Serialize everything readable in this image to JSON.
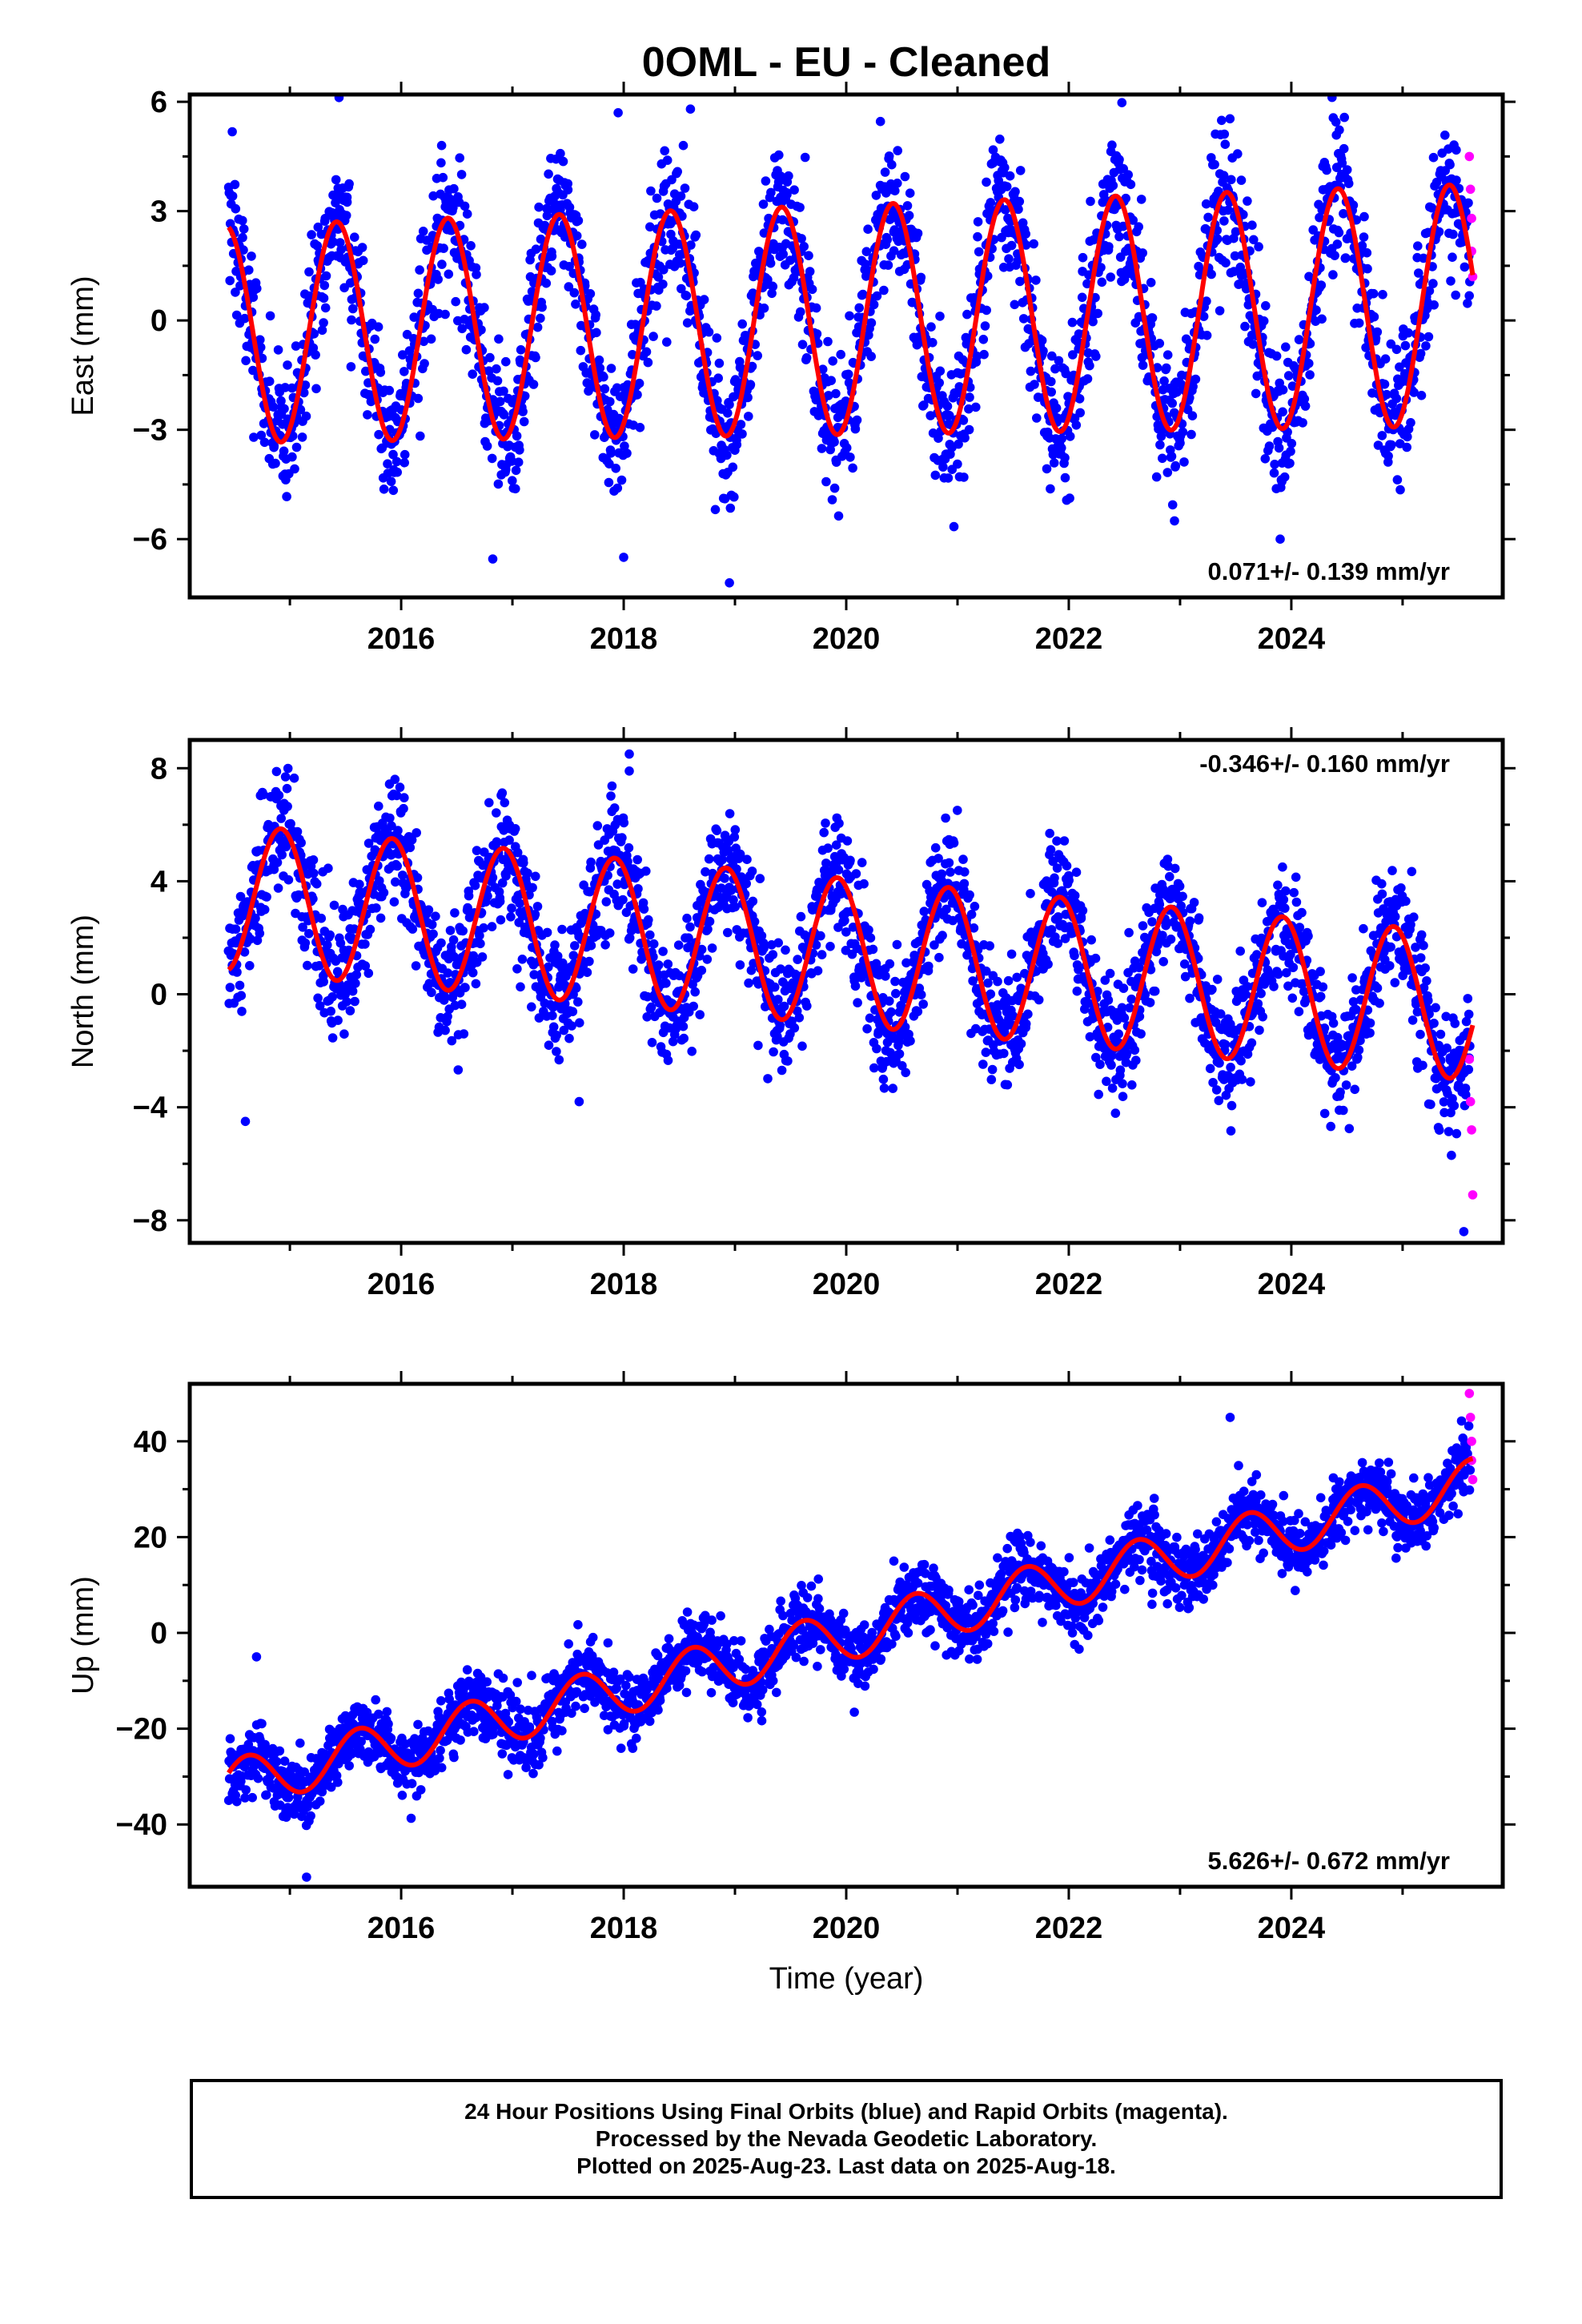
{
  "title": "0OML  - EU - Cleaned",
  "xlabel": "Time (year)",
  "footer": {
    "line1": "24 Hour Positions Using Final Orbits (blue) and Rapid Orbits (magenta).",
    "line2": "Processed by the Nevada Geodetic Laboratory.",
    "line3": "Plotted on 2025-Aug-23. Last data on 2025-Aug-18."
  },
  "colors": {
    "final": "#0000ff",
    "rapid": "#ff00ff",
    "model": "#ff0000",
    "axes": "#000000"
  },
  "chart_data": [
    {
      "type": "scatter",
      "component": "east",
      "ylabel": "East (mm)",
      "rate_text": "0.071+/- 0.139 mm/yr",
      "rate_position": "bottom-right",
      "xlim": [
        2014.1,
        2025.9
      ],
      "ylim": [
        -7.6,
        6.2
      ],
      "yticks": [
        -6,
        -3,
        0,
        3,
        6
      ],
      "yticklabels": [
        "−6",
        "−3",
        "0",
        "3",
        "6"
      ],
      "xticks": [
        2016,
        2018,
        2020,
        2022,
        2024
      ],
      "xticklabels": [
        "2016",
        "2018",
        "2020",
        "2022",
        "2024"
      ],
      "model": {
        "start": 2014.45,
        "end": 2025.63,
        "offset": 0.02,
        "trend": 0.071,
        "amplitude": 3.15,
        "amplitude_change": 0.03,
        "peak": 0.42,
        "semiannual": 0.0
      },
      "scatter_sigma": 1.0,
      "rapid": {
        "x": [
          2025.6,
          2025.61,
          2025.62,
          2025.62,
          2025.63
        ],
        "y": [
          4.5,
          3.6,
          2.8,
          1.9,
          1.2
        ]
      },
      "outliers": {
        "x": [
          2018.0,
          2018.95,
          2022.95,
          2023.9,
          2017.95,
          2018.6
        ],
        "y": [
          -6.5,
          -7.2,
          -5.5,
          -6.0,
          5.7,
          5.8
        ]
      }
    },
    {
      "type": "scatter",
      "component": "north",
      "ylabel": "North (mm)",
      "rate_text": "-0.346+/- 0.160 mm/yr",
      "rate_position": "top-right",
      "xlim": [
        2014.1,
        2025.9
      ],
      "ylim": [
        -8.8,
        9.0
      ],
      "yticks": [
        -8,
        -4,
        0,
        4,
        8
      ],
      "yticklabels": [
        "−8",
        "−4",
        "0",
        "4",
        "8"
      ],
      "xticks": [
        2016,
        2018,
        2020,
        2022,
        2024
      ],
      "xticklabels": [
        "2016",
        "2018",
        "2020",
        "2022",
        "2024"
      ],
      "model": {
        "start": 2014.45,
        "end": 2025.63,
        "offset": 1.5,
        "trend": -0.346,
        "amplitude": 2.6,
        "amplitude_change": 0.0,
        "peak": 0.92,
        "semiannual": 0.0
      },
      "scatter_sigma": 1.1,
      "rapid": {
        "x": [
          2025.6,
          2025.61,
          2025.62,
          2025.63
        ],
        "y": [
          -2.3,
          -3.8,
          -4.8,
          -7.1
        ]
      },
      "outliers": {
        "x": [
          2018.05,
          2018.05,
          2017.6,
          2025.55,
          2014.6
        ],
        "y": [
          8.5,
          7.9,
          -3.8,
          -8.4,
          -4.5
        ]
      }
    },
    {
      "type": "scatter",
      "component": "up",
      "ylabel": "Up (mm)",
      "rate_text": "5.626+/- 0.672 mm/yr",
      "rate_position": "bottom-right",
      "xlim": [
        2014.1,
        2025.9
      ],
      "ylim": [
        -53,
        52
      ],
      "yticks": [
        -40,
        -20,
        0,
        20,
        40
      ],
      "yticklabels": [
        "−40",
        "−20",
        "0",
        "20",
        "40"
      ],
      "xticks": [
        2016,
        2018,
        2020,
        2022,
        2024
      ],
      "xticklabels": [
        "2016",
        "2018",
        "2020",
        "2022",
        "2024"
      ],
      "model": {
        "start": 2014.45,
        "end": 2025.63,
        "offset": -0.5,
        "trend": 5.626,
        "amplitude": 5.2,
        "amplitude_change": 0.0,
        "peak": 0.62,
        "semiannual": 0.0
      },
      "scatter_sigma": 3.6,
      "rapid": {
        "x": [
          2025.6,
          2025.61,
          2025.62,
          2025.62,
          2025.63
        ],
        "y": [
          50,
          45,
          40,
          36,
          32
        ]
      },
      "outliers": {
        "x": [
          2023.45,
          2015.15,
          2014.7
        ],
        "y": [
          45,
          -51,
          -5
        ]
      }
    }
  ]
}
